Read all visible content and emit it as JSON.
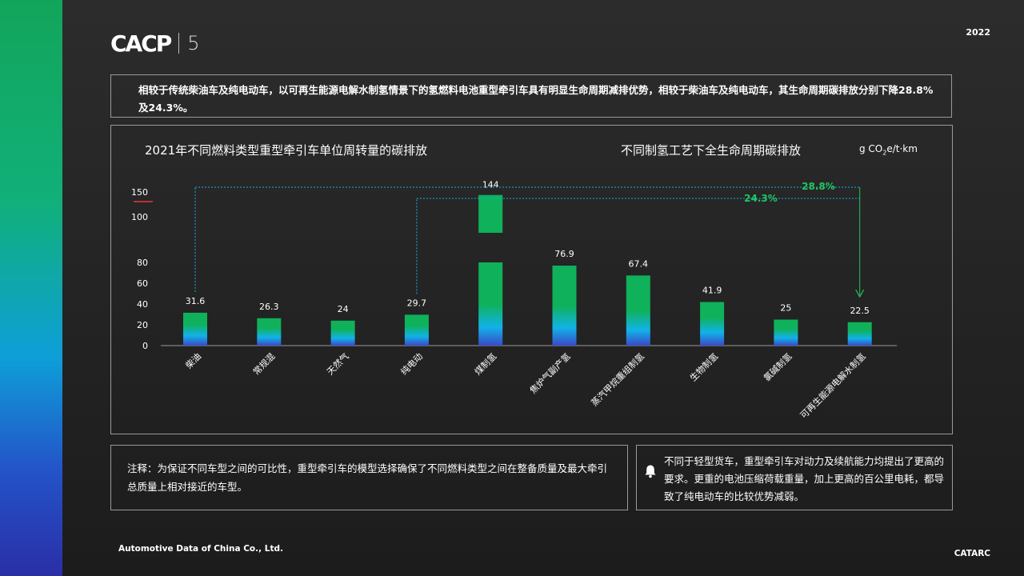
{
  "brand": {
    "logo": "CACP",
    "logo_number": "5",
    "year": "2022",
    "company": "Automotive Data of China Co., Ltd.",
    "footer_brand": "CATARC"
  },
  "summary": "相较于传统柴油车及纯电动车，以可再生能源电解水制氢情景下的氢燃料电池重型牵引车具有明显生命周期减排优势，相较于柴油车及纯电动车，其生命周期碳排放分别下降28.8%及24.3%。",
  "chart": {
    "title_left": "2021年不同燃料类型重型牵引车单位周转量的碳排放",
    "title_right": "不同制氢工艺下全生命周期碳排放",
    "unit_prefix": "g CO",
    "unit_sub": "2",
    "unit_suffix": "e/t·km"
  },
  "chart_data": {
    "type": "bar",
    "categories": [
      "柴油",
      "常规混",
      "天然气",
      "纯电动",
      "煤制氢",
      "焦炉气副产氢",
      "蒸汽甲烷重组制氢",
      "生物制氢",
      "氯碱制氢",
      "可再生能源电解水制氢"
    ],
    "values": [
      31.6,
      26.3,
      24,
      29.7,
      144,
      76.9,
      67.4,
      41.9,
      25,
      22.5
    ],
    "value_labels": [
      "31.6",
      "26.3",
      "24",
      "29.7",
      "144",
      "76.9",
      "67.4",
      "41.9",
      "25",
      "22.5"
    ],
    "y_ticks": [
      "0",
      "20",
      "40",
      "60",
      "80",
      "100",
      "150"
    ],
    "axis_break": {
      "from": 80,
      "to": 100
    },
    "ylim": [
      0,
      150
    ],
    "annotations": [
      {
        "label": "28.8%",
        "from": "柴油",
        "to": "可再生能源电解水制氢"
      },
      {
        "label": "24.3%",
        "from": "纯电动",
        "to": "可再生能源电解水制氢"
      }
    ],
    "colors": {
      "top": "#0fb15a",
      "mid": "#11b2e8",
      "bottom": "#3a49c8",
      "annotation": "#22c55e",
      "axis": "#9a9a9a",
      "break_mark": "#e53935"
    }
  },
  "note": "注释：为保证不同车型之间的可比性，重型牵引车的模型选择确保了不同燃料类型之间在整备质量及最大牵引总质量上相对接近的车型。",
  "remark": "不同于轻型货车，重型牵引车对动力及续航能力均提出了更高的要求。更重的电池压缩荷载重量，加上更高的百公里电耗，都导致了纯电动车的比较优势减弱。"
}
